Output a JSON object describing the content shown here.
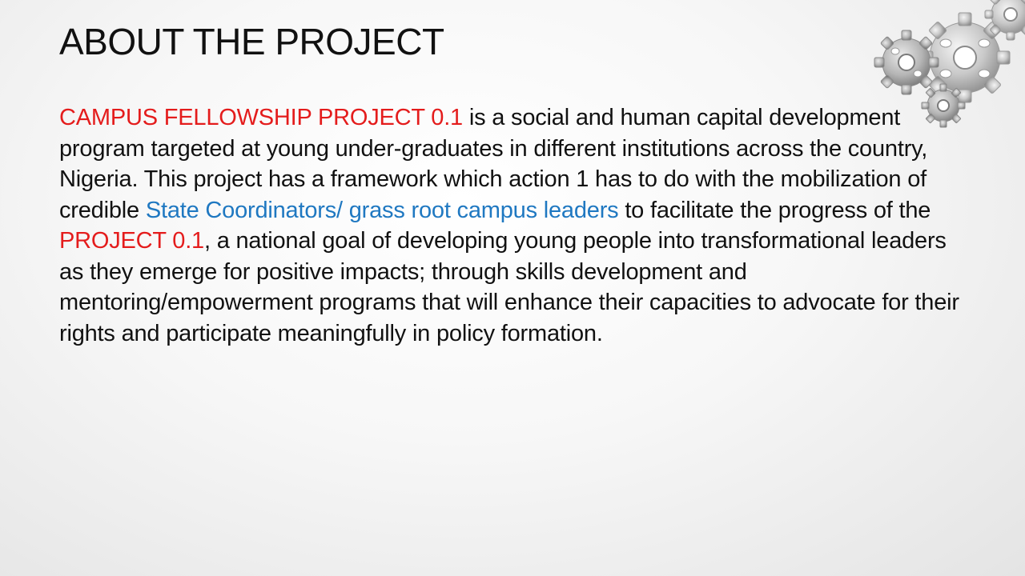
{
  "slide": {
    "title": "ABOUT THE PROJECT",
    "body": [
      {
        "text": "CAMPUS FELLOWSHIP PROJECT 0.1",
        "style": "red"
      },
      {
        "text": " is a social and human capital development program targeted at young under-graduates in different institutions across the country, Nigeria. This project has a framework which action 1 has to do with the mobilization of credible ",
        "style": "plain"
      },
      {
        "text": "State Coordinators/ grass root campus leaders",
        "style": "blue"
      },
      {
        "text": " to facilitate the progress of the ",
        "style": "plain"
      },
      {
        "text": "PROJECT 0.1",
        "style": "red"
      },
      {
        "text": ", a national goal of developing young people into transformational leaders as they emerge for positive impacts; through skills development and mentoring/empowerment programs that will enhance their capacities to advocate for their rights and participate meaningfully in policy formation.",
        "style": "plain"
      }
    ]
  },
  "decoration": {
    "icon": "gears-icon"
  },
  "colors": {
    "highlight_red": "#e41c1c",
    "highlight_blue": "#1f78c1",
    "text": "#111111"
  }
}
